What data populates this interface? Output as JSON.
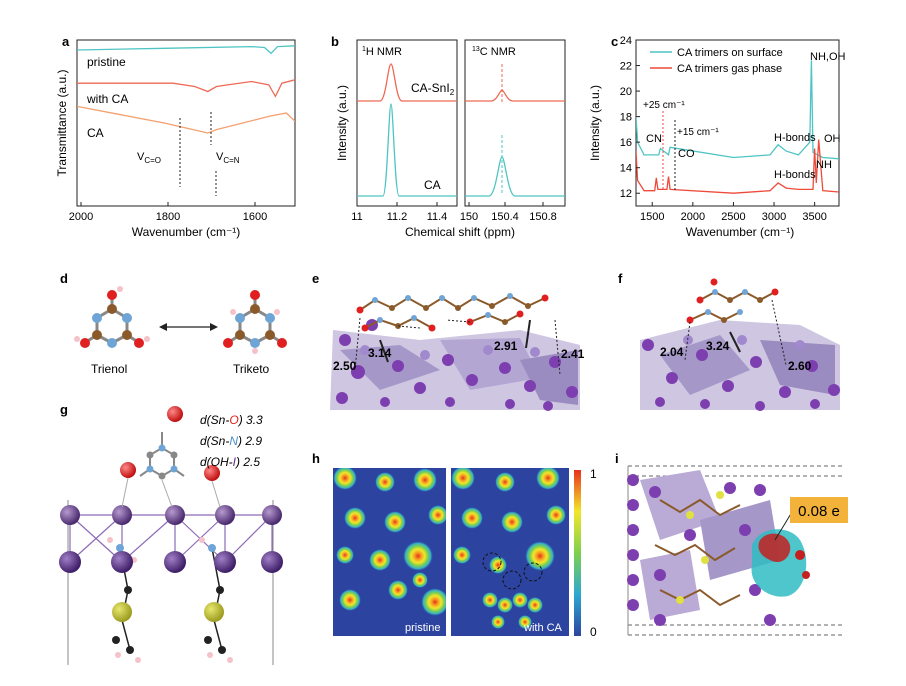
{
  "panels": {
    "a": {
      "letter": "a",
      "ylabel": "Transmittance (a.u.)",
      "xlabel": "Wavenumber (cm⁻¹)",
      "xticks": [
        "2000",
        "1800",
        "1600"
      ],
      "traces": [
        "pristine",
        "with CA",
        "CA"
      ],
      "annot": [
        "V",
        "C=O",
        "V",
        "C=N"
      ],
      "colors": {
        "pristine": "#4fc4c4",
        "with_ca": "#ee6a55",
        "ca": "#f4a070"
      }
    },
    "b": {
      "letter": "b",
      "left_title": [
        "1",
        "H NMR"
      ],
      "right_title": [
        "13",
        "C NMR"
      ],
      "ylabel": "Intensity (a.u.)",
      "xlabel": "Chemical shift (ppm)",
      "left_xticks": [
        "11",
        "11.2",
        "11.4"
      ],
      "right_xticks": [
        "150",
        "150.4",
        "150.8"
      ],
      "label_top": [
        "CA-SnI",
        "2"
      ],
      "label_bottom": "CA"
    },
    "c": {
      "letter": "c",
      "ylabel": "Intensity (a.u.)",
      "xlabel": "Wavenumber (cm⁻¹)",
      "yticks": [
        "12",
        "14",
        "16",
        "18",
        "20",
        "22",
        "24"
      ],
      "xticks": [
        "1500",
        "2000",
        "2500",
        "3000",
        "3500"
      ],
      "legend": [
        "CA trimers on surface",
        "CA trimers gas phase"
      ],
      "annotations": {
        "shift1": "+25 cm⁻¹",
        "cn": "CN",
        "shift2": "+15 cm⁻¹",
        "co": "CO",
        "hb1": "H-bonds",
        "hb2": "H-bonds",
        "nhoh": "NH,OH",
        "oh": "OH",
        "nh": "NH"
      },
      "colors": {
        "surface": "#4fc4c4",
        "gas": "#ee4a3a"
      }
    },
    "d": {
      "letter": "d",
      "left": "Trienol",
      "right": "Triketo"
    },
    "e": {
      "letter": "e",
      "distances": [
        "2.50",
        "3.14",
        "2.91",
        "2.41"
      ]
    },
    "f": {
      "letter": "f",
      "distances": [
        "2.04",
        "3.24",
        "2.60"
      ]
    },
    "g": {
      "letter": "g",
      "legend": [
        {
          "pre": "d(Sn-",
          "atom": "O",
          "post": ") 3.3"
        },
        {
          "pre": "d(Sn-",
          "atom": "N",
          "post": ") 2.9"
        },
        {
          "pre": "d(OH-",
          "atom": "I",
          "post": ") 2.5"
        }
      ]
    },
    "h": {
      "letter": "h",
      "left_label": "pristine",
      "right_label": "with CA",
      "cbar_top": "1",
      "cbar_bottom": "0"
    },
    "i": {
      "letter": "i",
      "charge": "0.08 e"
    }
  },
  "chart_data": [
    {
      "panel": "a",
      "type": "line",
      "xlabel": "Wavenumber (cm⁻¹)",
      "ylabel": "Transmittance (a.u.)",
      "xlim": [
        2000,
        1500
      ],
      "series": [
        {
          "name": "pristine",
          "x": [
            2000,
            1800,
            1600,
            1570,
            1555,
            1540,
            1500
          ],
          "y": [
            0.94,
            0.95,
            0.96,
            0.955,
            0.92,
            0.96,
            0.965
          ]
        },
        {
          "name": "with CA",
          "x": [
            2000,
            1780,
            1730,
            1700,
            1680,
            1600,
            1560,
            1545,
            1530,
            1500
          ],
          "y": [
            0.74,
            0.74,
            0.72,
            0.69,
            0.72,
            0.75,
            0.73,
            0.66,
            0.74,
            0.76
          ]
        },
        {
          "name": "CA",
          "x": [
            2000,
            1900,
            1800,
            1750,
            1700,
            1680,
            1620,
            1560,
            1520,
            1500
          ],
          "y": [
            0.6,
            0.55,
            0.5,
            0.47,
            0.44,
            0.46,
            0.5,
            0.54,
            0.56,
            0.51
          ]
        }
      ]
    },
    {
      "panel": "b",
      "type": "line",
      "subplots": [
        {
          "title": "1H NMR",
          "xlim": [
            11.0,
            11.5
          ],
          "peaks": [
            {
              "name": "CA-SnI2",
              "x": 11.17
            },
            {
              "name": "CA",
              "x": 11.16
            }
          ]
        },
        {
          "title": "13C NMR",
          "xlim": [
            150.0,
            150.9
          ],
          "peaks": [
            {
              "name": "CA-SnI2",
              "x": 150.38
            },
            {
              "name": "CA",
              "x": 150.38
            }
          ]
        }
      ]
    },
    {
      "panel": "c",
      "type": "line",
      "xlabel": "Wavenumber (cm⁻¹)",
      "ylabel": "Intensity (a.u.)",
      "xlim": [
        1300,
        3800
      ],
      "ylim": [
        11,
        24
      ],
      "series": [
        {
          "name": "CA trimers on surface",
          "x": [
            1300,
            1320,
            1400,
            1580,
            1600,
            1700,
            1720,
            2500,
            2950,
            3050,
            3150,
            3300,
            3440,
            3460,
            3480,
            3600,
            3800
          ],
          "y": [
            18.0,
            16.0,
            15.0,
            15.0,
            15.5,
            15.0,
            15.6,
            14.8,
            15.0,
            15.8,
            15.3,
            15.0,
            16.0,
            22.4,
            15.2,
            14.8,
            14.7
          ]
        },
        {
          "name": "CA trimers gas phase",
          "x": [
            1300,
            1320,
            1400,
            1530,
            1550,
            1570,
            1680,
            1700,
            1720,
            2500,
            2950,
            3050,
            3150,
            3300,
            3480,
            3500,
            3520,
            3550,
            3600,
            3800
          ],
          "y": [
            15.3,
            13.0,
            12.2,
            12.2,
            13.2,
            12.3,
            12.3,
            13.3,
            12.3,
            12.0,
            12.2,
            12.8,
            12.4,
            12.3,
            12.3,
            15.5,
            12.8,
            16.2,
            12.2,
            12.1
          ]
        }
      ]
    }
  ]
}
